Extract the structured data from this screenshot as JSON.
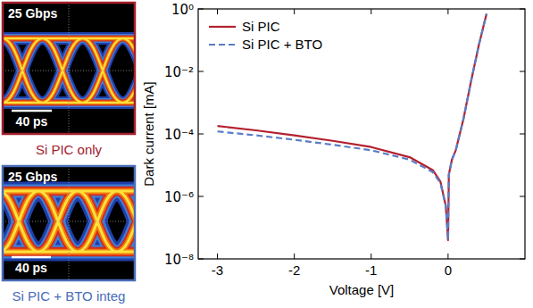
{
  "chart_data": {
    "type": "line",
    "xlabel": "Voltage [V]",
    "ylabel": "Dark current [mA]",
    "x": [
      -3,
      -2.5,
      -2,
      -1.5,
      -1,
      -0.5,
      -0.2,
      -0.1,
      -0.03,
      0,
      0.01,
      0.05,
      0.1,
      0.2,
      0.3,
      0.4,
      0.5
    ],
    "series": [
      {
        "name": "Si PIC",
        "color": "#b3202e",
        "line_style": "solid",
        "values": [
          0.00018,
          0.00013,
          9e-05,
          6e-05,
          3.8e-05,
          1.8e-05,
          7e-06,
          3e-06,
          5e-07,
          4e-08,
          5e-06,
          1.5e-05,
          3e-05,
          0.0003,
          0.005,
          0.07,
          0.7
        ]
      },
      {
        "name": "Si PIC + BTO",
        "color": "#5a7cc8",
        "line_style": "dashed",
        "values": [
          0.00012,
          9e-05,
          6.5e-05,
          4.5e-05,
          3e-05,
          1.5e-05,
          6e-06,
          2.7e-06,
          5e-07,
          4e-08,
          5e-06,
          1.5e-05,
          3e-05,
          0.0003,
          0.005,
          0.07,
          0.7
        ]
      }
    ],
    "xlim": [
      -3.25,
      1.0
    ],
    "ylim": [
      1e-08,
      1
    ],
    "xticks": [
      -3,
      -2,
      -1,
      0
    ],
    "yticks": [
      {
        "value": 1e-08,
        "label": "10⁻⁸"
      },
      {
        "value": 1e-06,
        "label": "10⁻⁶"
      },
      {
        "value": 0.0001,
        "label": "10⁻⁴"
      },
      {
        "value": 0.01,
        "label": "10⁻²"
      },
      {
        "value": 1,
        "label": "10⁰"
      }
    ],
    "log": "y",
    "legend": "upper left",
    "grid": false
  },
  "eye_diagrams": [
    {
      "bit_rate": "25 Gbps",
      "scale_bar": "40 ps",
      "caption": "Si PIC only"
    },
    {
      "bit_rate": "25 Gbps",
      "scale_bar": "40 ps",
      "caption": "Si PIC + BTO integ"
    }
  ]
}
